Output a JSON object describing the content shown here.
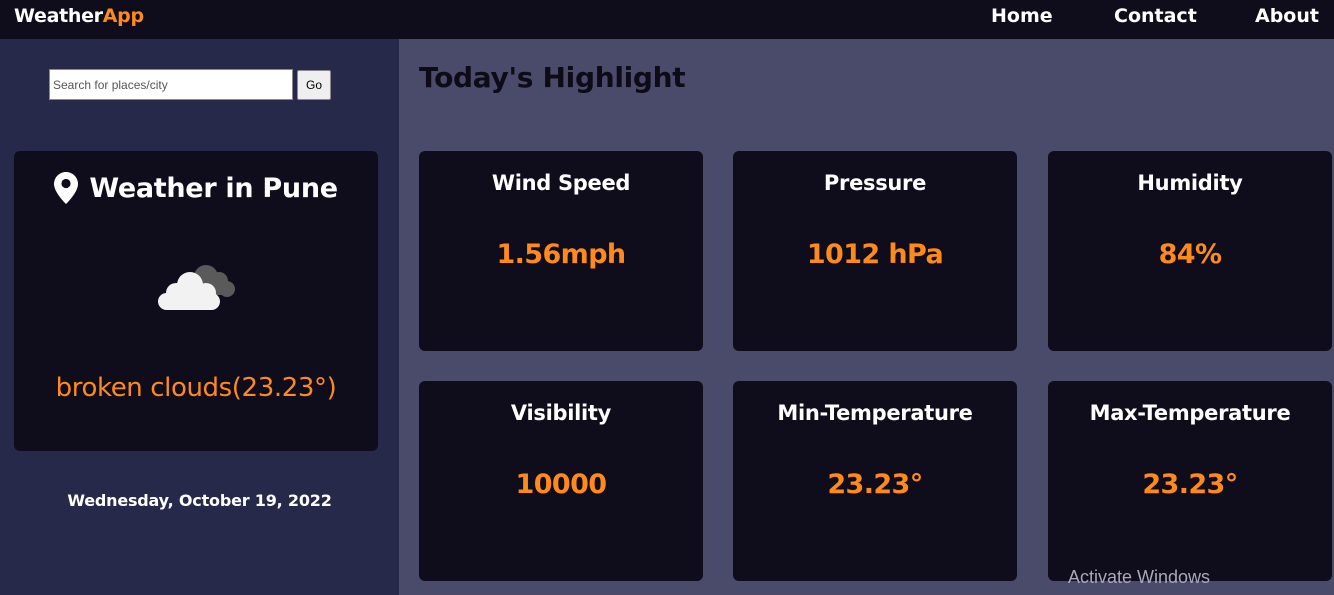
{
  "navbar": {
    "brand_main": "Weather",
    "brand_accent": "App",
    "links": {
      "home": "Home",
      "contact": "Contact",
      "about": "About"
    }
  },
  "sidebar": {
    "search": {
      "placeholder": "Search for places/city",
      "value": "",
      "button_label": "Go"
    },
    "weather_card": {
      "location_title": "Weather in Pune",
      "pin_icon": "map-pin-icon",
      "weather_icon": "broken-clouds-icon",
      "description": "broken clouds(23.23°)"
    },
    "date": "Wednesday, October 19, 2022"
  },
  "main": {
    "title": "Today's Highlight",
    "cards": [
      {
        "title": "Wind Speed",
        "value": "1.56mph"
      },
      {
        "title": "Pressure",
        "value": "1012 hPa"
      },
      {
        "title": "Humidity",
        "value": "84%"
      },
      {
        "title": "Visibility",
        "value": "10000"
      },
      {
        "title": "Min-Temperature",
        "value": "23.23°"
      },
      {
        "title": "Max-Temperature",
        "value": "23.23°"
      }
    ]
  },
  "watermark": "Activate Windows",
  "colors": {
    "accent": "#ff8a1c",
    "navbar_bg": "#0f0d1c",
    "sidebar_bg": "#27294a",
    "main_bg": "#4a4a6a",
    "card_bg": "#0f0d1c"
  }
}
